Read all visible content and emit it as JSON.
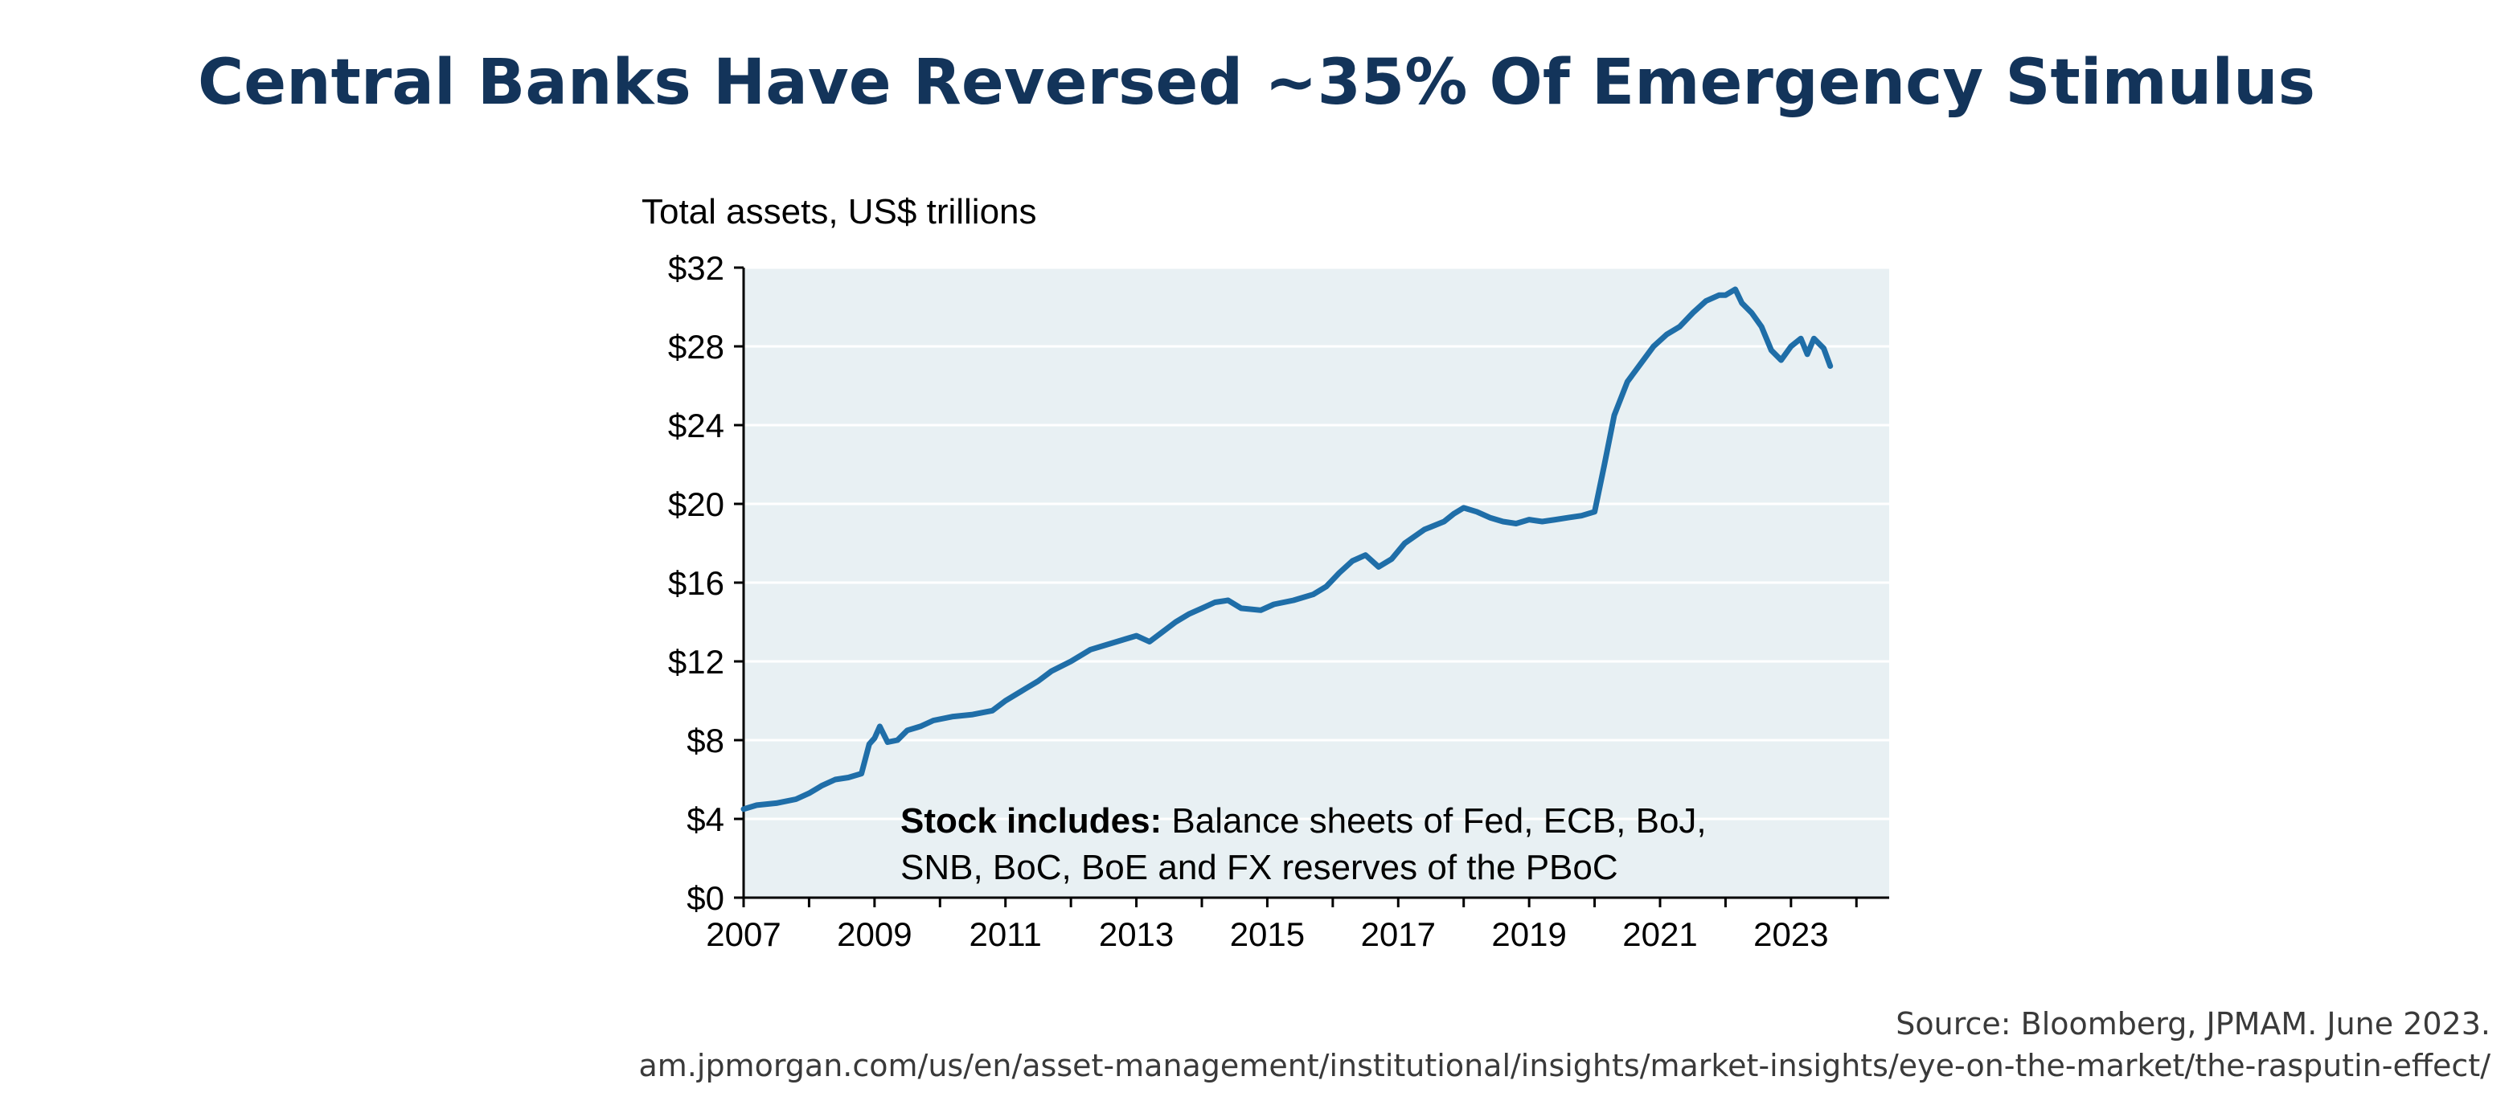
{
  "title": "Central Banks Have Reversed ~35% Of Emergency Stimulus",
  "footer": {
    "source": "Source: Bloomberg, JPMAM. June 2023.",
    "url": "am.jpmorgan.com/us/en/asset-management/institutional/insights/market-insights/eye-on-the-market/the-rasputin-effect/"
  },
  "colors": {
    "title": "#13345a",
    "line": "#1f6ea8",
    "plot_background": "#e8f0f3",
    "gridline": "#ffffff"
  },
  "chart_data": {
    "type": "line",
    "title": "",
    "ylabel": "Total assets, US$ trillions",
    "xlabel": "",
    "xlim": [
      2007,
      2024.5
    ],
    "ylim": [
      0,
      32
    ],
    "grid": true,
    "x_ticks": [
      "2007",
      "2009",
      "2011",
      "2013",
      "2015",
      "2017",
      "2019",
      "2021",
      "2023"
    ],
    "y_ticks": [
      "$0",
      "$4",
      "$8",
      "$12",
      "$16",
      "$20",
      "$24",
      "$28",
      "$32"
    ],
    "annotation": {
      "bold": "Stock includes:",
      "text_line1": " Balance sheets of Fed, ECB, BoJ,",
      "text_line2": "SNB, BoC, BoE and FX reserves of the PBoC"
    },
    "series": [
      {
        "points": [
          [
            2007.0,
            4.5
          ],
          [
            2007.2,
            4.7
          ],
          [
            2007.5,
            4.8
          ],
          [
            2007.8,
            5.0
          ],
          [
            2008.0,
            5.3
          ],
          [
            2008.2,
            5.7
          ],
          [
            2008.4,
            6.0
          ],
          [
            2008.6,
            6.1
          ],
          [
            2008.8,
            6.3
          ],
          [
            2008.92,
            7.8
          ],
          [
            2009.0,
            8.1
          ],
          [
            2009.08,
            8.7
          ],
          [
            2009.2,
            7.9
          ],
          [
            2009.35,
            8.0
          ],
          [
            2009.5,
            8.5
          ],
          [
            2009.7,
            8.7
          ],
          [
            2009.9,
            9.0
          ],
          [
            2010.2,
            9.2
          ],
          [
            2010.5,
            9.3
          ],
          [
            2010.8,
            9.5
          ],
          [
            2011.0,
            10.0
          ],
          [
            2011.3,
            10.6
          ],
          [
            2011.5,
            11.0
          ],
          [
            2011.7,
            11.5
          ],
          [
            2012.0,
            12.0
          ],
          [
            2012.3,
            12.6
          ],
          [
            2012.5,
            12.8
          ],
          [
            2012.8,
            13.1
          ],
          [
            2013.0,
            13.3
          ],
          [
            2013.2,
            13.0
          ],
          [
            2013.4,
            13.5
          ],
          [
            2013.6,
            14.0
          ],
          [
            2013.8,
            14.4
          ],
          [
            2014.0,
            14.7
          ],
          [
            2014.2,
            15.0
          ],
          [
            2014.4,
            15.1
          ],
          [
            2014.6,
            14.7
          ],
          [
            2014.9,
            14.6
          ],
          [
            2015.1,
            14.9
          ],
          [
            2015.4,
            15.1
          ],
          [
            2015.7,
            15.4
          ],
          [
            2015.9,
            15.8
          ],
          [
            2016.1,
            16.5
          ],
          [
            2016.3,
            17.1
          ],
          [
            2016.5,
            17.4
          ],
          [
            2016.7,
            16.8
          ],
          [
            2016.9,
            17.2
          ],
          [
            2017.1,
            18.0
          ],
          [
            2017.4,
            18.7
          ],
          [
            2017.7,
            19.1
          ],
          [
            2017.85,
            19.5
          ],
          [
            2018.0,
            19.8
          ],
          [
            2018.2,
            19.6
          ],
          [
            2018.4,
            19.3
          ],
          [
            2018.6,
            19.1
          ],
          [
            2018.8,
            19.0
          ],
          [
            2019.0,
            19.2
          ],
          [
            2019.2,
            19.1
          ],
          [
            2019.4,
            19.2
          ],
          [
            2019.6,
            19.3
          ],
          [
            2019.8,
            19.4
          ],
          [
            2020.0,
            19.6
          ],
          [
            2020.15,
            22.0
          ],
          [
            2020.3,
            24.5
          ],
          [
            2020.5,
            26.2
          ],
          [
            2020.7,
            27.1
          ],
          [
            2020.9,
            28.0
          ],
          [
            2021.1,
            28.6
          ],
          [
            2021.3,
            29.0
          ],
          [
            2021.5,
            29.7
          ],
          [
            2021.7,
            30.3
          ],
          [
            2021.9,
            30.6
          ],
          [
            2022.0,
            30.6
          ],
          [
            2022.15,
            30.9
          ],
          [
            2022.25,
            30.2
          ],
          [
            2022.4,
            29.7
          ],
          [
            2022.55,
            29.0
          ],
          [
            2022.7,
            27.8
          ],
          [
            2022.85,
            27.3
          ],
          [
            2023.0,
            28.0
          ],
          [
            2023.15,
            28.4
          ],
          [
            2023.25,
            27.6
          ],
          [
            2023.35,
            28.4
          ],
          [
            2023.5,
            27.9
          ],
          [
            2023.6,
            27.0
          ]
        ]
      }
    ]
  }
}
